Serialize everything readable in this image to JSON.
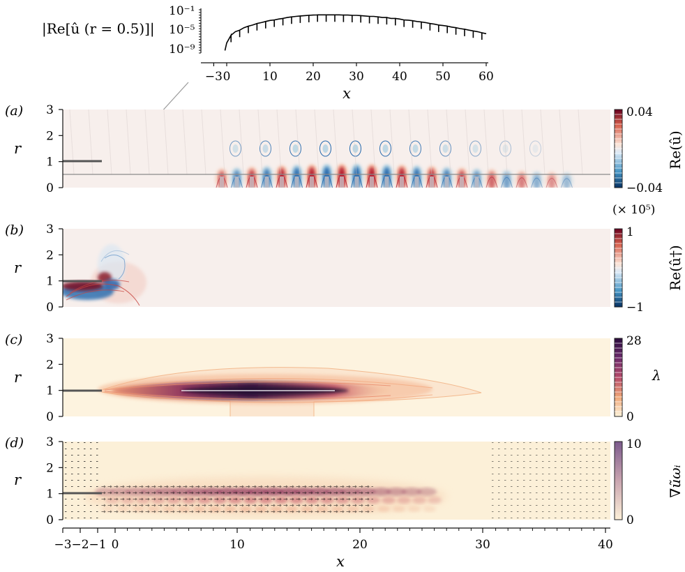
{
  "inset": {
    "ylabel": "|Re[û (r = 0.5)]|",
    "yticks": [
      "10⁻¹",
      "10⁻⁵",
      "10⁻⁹"
    ],
    "xticks": [
      "−3",
      "0",
      "10",
      "20",
      "30",
      "40",
      "50",
      "60"
    ],
    "xlabel": "x",
    "probe_r": 0.5
  },
  "panels": [
    {
      "label": "(a)",
      "ylabel": "r",
      "cbar_label": "Re(û)",
      "cbar_top": "0.04",
      "cbar_bottom": "−0.04",
      "cbar_scale": ""
    },
    {
      "label": "(b)",
      "ylabel": "r",
      "cbar_label": "Re(û†)",
      "cbar_top": "1",
      "cbar_bottom": "−1",
      "cbar_scale": "(× 10⁵)"
    },
    {
      "label": "(c)",
      "ylabel": "r",
      "cbar_label": "λ",
      "cbar_top": "28",
      "cbar_bottom": "0",
      "cbar_scale": ""
    },
    {
      "label": "(d)",
      "ylabel": "r",
      "cbar_label": "∇ũωᵢ",
      "cbar_top": "10",
      "cbar_bottom": "0",
      "cbar_scale": ""
    }
  ],
  "main_axes": {
    "xticks": [
      "−3",
      "−2",
      "−1",
      "0",
      "10",
      "20",
      "30",
      "40"
    ],
    "yticks": [
      "0",
      "1",
      "2",
      "3"
    ],
    "xlabel": "x"
  },
  "chart_data": [
    {
      "type": "line",
      "title": "",
      "ylabel": "|Re[û (r = 0.5)]|",
      "xlabel": "x",
      "yscale": "log",
      "xlim": [
        -3,
        60
      ],
      "ylim": [
        1e-10,
        0.1
      ],
      "x": [
        -0.4,
        0,
        1,
        2,
        3,
        4,
        5,
        6,
        7,
        8,
        9,
        10,
        11,
        12,
        13,
        14,
        15,
        16,
        17,
        18,
        19,
        20,
        21,
        22,
        23,
        24,
        25,
        26,
        27,
        28,
        29,
        30,
        31,
        32,
        33,
        34,
        35,
        36,
        37,
        38,
        39,
        40,
        41,
        42,
        43,
        44,
        45,
        46,
        47,
        48,
        49,
        50,
        51,
        52,
        53,
        54,
        55,
        56,
        57,
        58,
        59,
        60
      ],
      "y": [
        1e-09,
        3e-08,
        1e-06,
        5e-06,
        1e-05,
        3e-05,
        6e-05,
        0.0001,
        0.0002,
        0.0003,
        0.0005,
        0.0008,
        0.001,
        0.0015,
        0.002,
        0.003,
        0.004,
        0.005,
        0.006,
        0.007,
        0.008,
        0.009,
        0.01,
        0.01,
        0.01,
        0.01,
        0.01,
        0.01,
        0.009,
        0.009,
        0.008,
        0.008,
        0.007,
        0.006,
        0.005,
        0.005,
        0.004,
        0.003,
        0.003,
        0.002,
        0.002,
        0.0015,
        0.001,
        0.0009,
        0.0007,
        0.0005,
        0.0004,
        0.0003,
        0.0002,
        0.00015,
        0.0001,
        8e-05,
        6e-05,
        4e-05,
        3e-05,
        2e-05,
        1.5e-05,
        1e-05,
        7e-06,
        5e-06,
        3e-06,
        2e-06
      ]
    },
    {
      "type": "heatmap",
      "panel": "(a)",
      "field": "Re(û)",
      "xlim": [
        -3,
        40
      ],
      "ylim": [
        0,
        3
      ],
      "clim": [
        -0.04,
        0.04
      ],
      "colormap": "red-blue diverging",
      "probe_line_r": 0.5,
      "wavepacket_peak_x": 18,
      "upper_lobes_peak_x": 16
    },
    {
      "type": "heatmap",
      "panel": "(b)",
      "field": "Re(û†)",
      "scale": "× 10⁵",
      "xlim": [
        -3,
        40
      ],
      "ylim": [
        0,
        3
      ],
      "clim": [
        -1,
        1
      ],
      "colormap": "red-blue diverging",
      "localized_near_x": [
        -3,
        0
      ],
      "lip_r": 1
    },
    {
      "type": "heatmap",
      "panel": "(c)",
      "field": "λ",
      "xlim": [
        -3,
        40
      ],
      "ylim": [
        0,
        3
      ],
      "clim": [
        0,
        28
      ],
      "colormap": "sequential cream-to-purple",
      "peak_x": 12,
      "peak_r": 1,
      "extent_x": [
        -1,
        30
      ]
    },
    {
      "type": "heatmap",
      "panel": "(d)",
      "field": "∇ũωᵢ",
      "xlim": [
        -3,
        40
      ],
      "ylim": [
        0,
        3
      ],
      "clim": [
        0,
        10
      ],
      "colormap": "sequential cream-to-purple",
      "overlay": "vector arrows",
      "peak_x": 12,
      "peak_r": 1
    }
  ]
}
